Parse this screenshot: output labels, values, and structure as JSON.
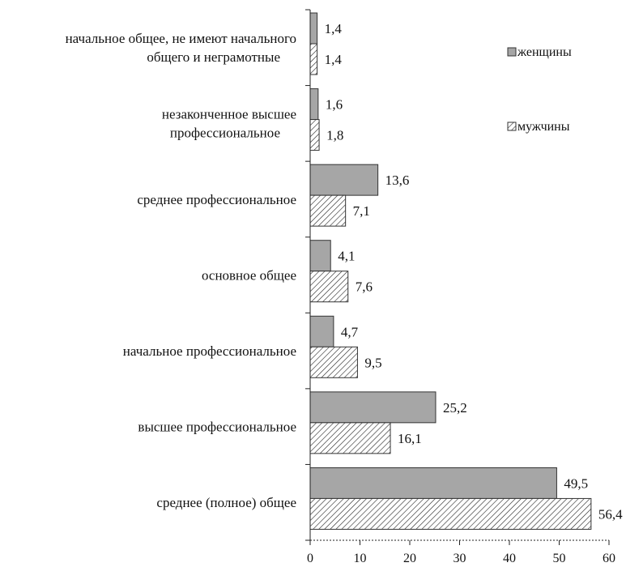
{
  "chart_data": {
    "type": "bar",
    "orientation": "horizontal",
    "title": "",
    "xlabel": "",
    "ylabel": "",
    "xlim": [
      0,
      60
    ],
    "x_ticks": [
      "0",
      "10",
      "20",
      "30",
      "40",
      "50",
      "60"
    ],
    "grid": false,
    "legend_position": "top-right",
    "categories": [
      [
        "начальное общее, не имеют начального",
        "общего и неграмотные"
      ],
      [
        "незаконченное высшее",
        "профессиональное"
      ],
      [
        "среднее профессиональное"
      ],
      [
        "основное общее"
      ],
      [
        "начальное профессиональное"
      ],
      [
        "высшее профессиональное"
      ],
      [
        "среднее (полное) общее"
      ]
    ],
    "series": [
      {
        "name": "женщины",
        "fill": "solid-gray",
        "color": "#a6a6a6",
        "values": [
          1.4,
          1.6,
          13.6,
          4.1,
          4.7,
          25.2,
          49.5
        ],
        "labels": [
          "1,4",
          "1,6",
          "13,6",
          "4,1",
          "4,7",
          "25,2",
          "49,5"
        ]
      },
      {
        "name": "мужчины",
        "fill": "diagonal-hatch",
        "color": "#ffffff",
        "values": [
          1.4,
          1.8,
          7.1,
          7.6,
          9.5,
          16.1,
          56.4
        ],
        "labels": [
          "1,4",
          "1,8",
          "7,1",
          "7,6",
          "9,5",
          "16,1",
          "56,4"
        ]
      }
    ]
  }
}
